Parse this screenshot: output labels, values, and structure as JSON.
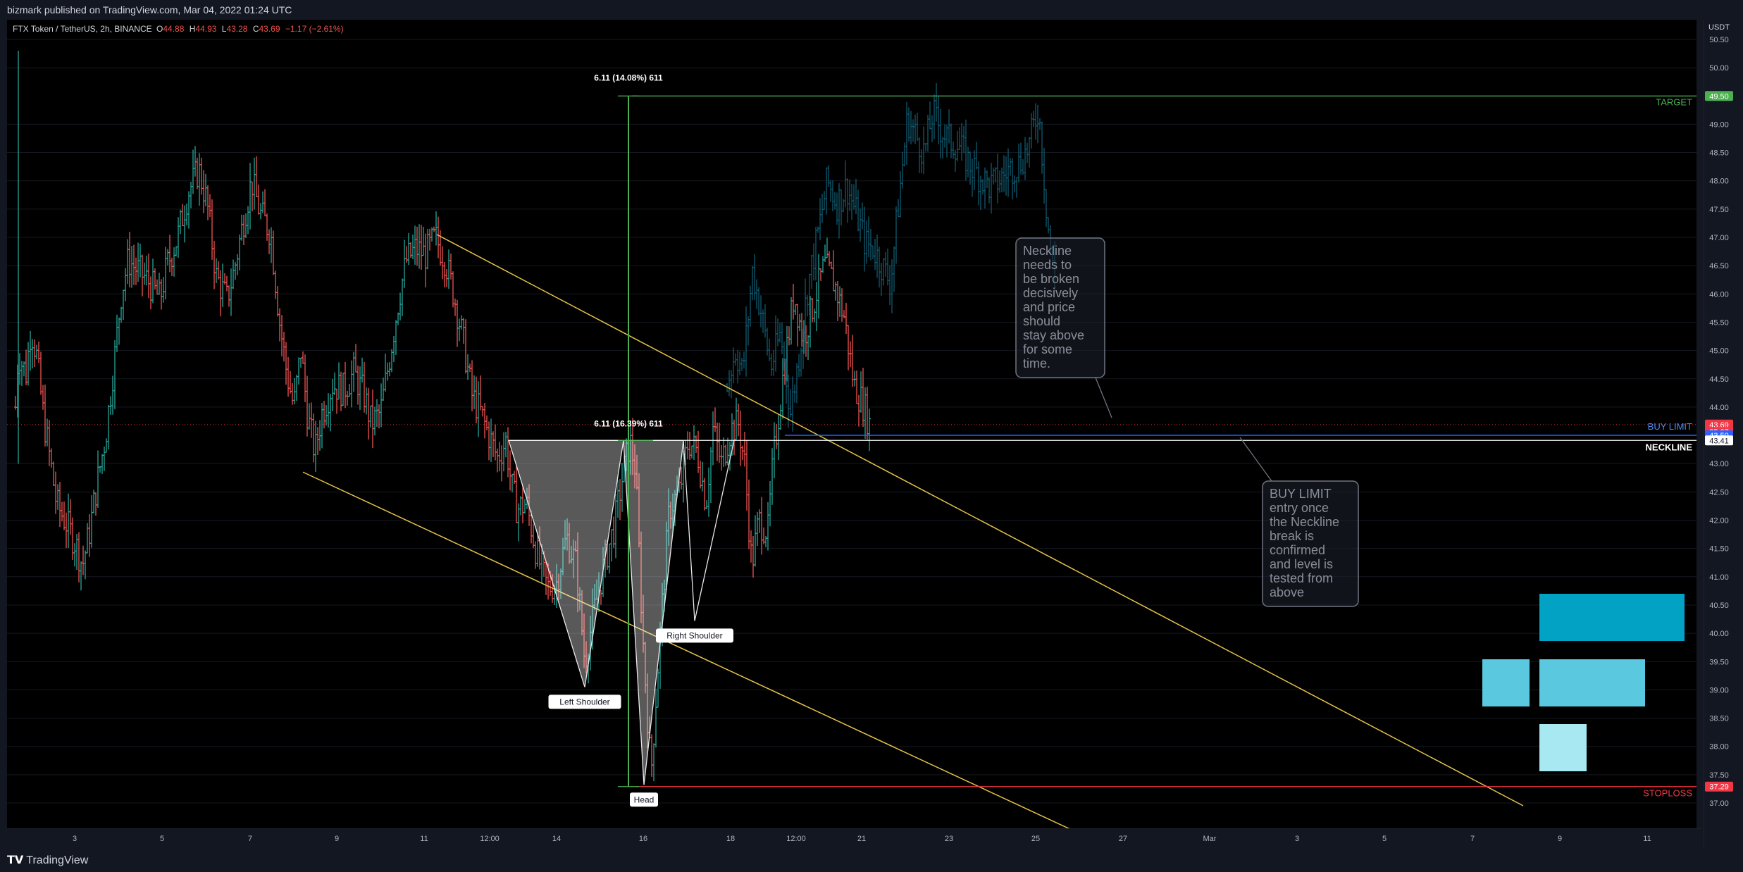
{
  "header": {
    "publisher": "bizmark published on TradingView.com, Mar 04, 2022 01:24 UTC"
  },
  "symbol": {
    "name": "FTX Token / TetherUS, 2h, BINANCE",
    "o_label": "O",
    "o": "44.88",
    "h_label": "H",
    "h": "44.93",
    "l_label": "L",
    "l": "43.28",
    "c_label": "C",
    "c": "43.69",
    "change": "−1.17 (−2.61%)"
  },
  "footer": {
    "brand": "TradingView"
  },
  "colors": {
    "up": "#26a69a",
    "down": "#ef5350",
    "projection": "#0f5a70",
    "channel": "#e5c24a",
    "target": "#4caf50",
    "stoploss": "#f23645",
    "buylimit": "#2962ff"
  },
  "chart_data": {
    "type": "bar",
    "currency": "USDT",
    "ylim": [
      36.7,
      50.8
    ],
    "y_ticks": [
      "37.00",
      "37.50",
      "38.00",
      "38.50",
      "39.00",
      "39.50",
      "40.00",
      "40.50",
      "41.00",
      "41.50",
      "42.00",
      "42.50",
      "43.00",
      "44.00",
      "44.50",
      "45.00",
      "45.50",
      "46.00",
      "46.50",
      "47.00",
      "47.50",
      "48.00",
      "48.50",
      "49.00",
      "50.00",
      "50.50"
    ],
    "x_ticks": [
      "3",
      "5",
      "7",
      "9",
      "11",
      "12:00",
      "14",
      "16",
      "18",
      "12:00",
      "21",
      "23",
      "25",
      "27",
      "Mar",
      "3",
      "5",
      "7",
      "9",
      "11"
    ],
    "price_tags": [
      {
        "label": "49.50",
        "value": 49.5,
        "bg": "#4caf50",
        "fg": "#ffffff"
      },
      {
        "label": "43.69",
        "value": 43.69,
        "bg": "#f23645",
        "fg": "#ffffff"
      },
      {
        "label": "35:37",
        "value": 43.56,
        "bg": "#f23645",
        "fg": "#ffffff"
      },
      {
        "label": "43.50",
        "value": 43.5,
        "bg": "#2962ff",
        "fg": "#ffffff"
      },
      {
        "label": "43.41",
        "value": 43.41,
        "bg": "#ffffff",
        "fg": "#131722"
      },
      {
        "label": "37.29",
        "value": 37.29,
        "bg": "#f23645",
        "fg": "#ffffff"
      }
    ],
    "levels": [
      {
        "name": "TARGET",
        "value": 49.5
      },
      {
        "name": "BUY LIMIT",
        "value": 43.5
      },
      {
        "name": "NECKLINE",
        "value": 43.41
      },
      {
        "name": "STOPLOSS",
        "value": 37.29
      }
    ],
    "measure_labels": {
      "upper": "6.11 (14.08%) 611",
      "lower": "6.11 (16.39%) 611"
    },
    "pattern_labels": {
      "left_shoulder": "Left Shoulder",
      "head": "Head",
      "right_shoulder": "Right Shoulder"
    },
    "notes": {
      "neckline": [
        "Neckline",
        "needs to",
        "be broken",
        "decisively",
        "and price",
        "should",
        "stay above",
        "for some",
        "time."
      ],
      "buy_limit": [
        "BUY LIMIT",
        "entry once",
        "the Neckline",
        "break is",
        "confirmed",
        "and level is",
        "tested from",
        "above"
      ]
    },
    "price_path": [
      [
        0,
        44.0
      ],
      [
        4,
        45.0
      ],
      [
        8,
        44.8
      ],
      [
        15,
        44.6
      ],
      [
        22,
        45.4
      ],
      [
        30,
        44.9
      ],
      [
        40,
        43.8
      ],
      [
        50,
        43.0
      ],
      [
        58,
        42.3
      ],
      [
        70,
        42.0
      ],
      [
        85,
        41.6
      ],
      [
        95,
        41.2
      ],
      [
        105,
        41.8
      ],
      [
        115,
        42.6
      ],
      [
        128,
        43.5
      ],
      [
        140,
        44.8
      ],
      [
        150,
        46.0
      ],
      [
        160,
        46.6
      ],
      [
        175,
        46.4
      ],
      [
        190,
        46.2
      ],
      [
        205,
        45.9
      ],
      [
        215,
        46.5
      ],
      [
        230,
        47.0
      ],
      [
        245,
        47.8
      ],
      [
        260,
        48.2
      ],
      [
        272,
        47.6
      ],
      [
        285,
        46.3
      ],
      [
        300,
        45.9
      ],
      [
        310,
        46.4
      ],
      [
        322,
        47.2
      ],
      [
        335,
        48.0
      ],
      [
        348,
        47.4
      ],
      [
        362,
        47.1
      ],
      [
        375,
        45.5
      ],
      [
        385,
        44.6
      ],
      [
        395,
        44.0
      ],
      [
        405,
        45.0
      ],
      [
        415,
        43.8
      ],
      [
        425,
        43.2
      ],
      [
        435,
        43.9
      ],
      [
        450,
        44.4
      ],
      [
        465,
        44.3
      ],
      [
        480,
        44.6
      ],
      [
        495,
        44.2
      ],
      [
        505,
        43.7
      ],
      [
        518,
        43.9
      ],
      [
        530,
        44.8
      ],
      [
        545,
        46.0
      ],
      [
        555,
        46.6
      ],
      [
        568,
        46.8
      ],
      [
        582,
        46.7
      ],
      [
        596,
        47.0
      ],
      [
        610,
        46.6
      ],
      [
        622,
        46.0
      ],
      [
        635,
        45.2
      ],
      [
        648,
        44.2
      ],
      [
        660,
        43.9
      ],
      [
        672,
        43.5
      ],
      [
        684,
        43.1
      ],
      [
        696,
        43.4
      ],
      [
        704,
        42.6
      ],
      [
        712,
        42.2
      ],
      [
        725,
        42.3
      ],
      [
        740,
        41.4
      ],
      [
        755,
        40.8
      ],
      [
        768,
        40.9
      ],
      [
        782,
        41.7
      ],
      [
        796,
        41.2
      ],
      [
        808,
        39.5
      ],
      [
        820,
        40.3
      ],
      [
        835,
        41.2
      ],
      [
        850,
        41.9
      ],
      [
        862,
        42.8
      ],
      [
        872,
        43.4
      ],
      [
        880,
        42.9
      ],
      [
        890,
        40.0
      ],
      [
        902,
        37.5
      ],
      [
        915,
        40.0
      ],
      [
        928,
        42.2
      ],
      [
        942,
        42.5
      ],
      [
        955,
        43.4
      ],
      [
        968,
        43.2
      ],
      [
        980,
        42.3
      ],
      [
        990,
        43.6
      ],
      [
        1002,
        43.0
      ],
      [
        1015,
        43.6
      ],
      [
        1026,
        43.7
      ],
      [
        1035,
        43.0
      ],
      [
        1045,
        41.2
      ],
      [
        1055,
        42.0
      ],
      [
        1068,
        41.8
      ],
      [
        1075,
        43.0
      ],
      [
        1090,
        44.6
      ],
      [
        1105,
        46.0
      ],
      [
        1118,
        45.2
      ],
      [
        1132,
        45.8
      ],
      [
        1148,
        46.5
      ],
      [
        1162,
        46.2
      ],
      [
        1176,
        45.6
      ],
      [
        1190,
        44.4
      ],
      [
        1205,
        44.0
      ],
      [
        1212,
        43.7
      ]
    ],
    "projection_path": [
      [
        1010,
        44.4
      ],
      [
        1022,
        45.0
      ],
      [
        1032,
        44.6
      ],
      [
        1046,
        46.4
      ],
      [
        1058,
        45.7
      ],
      [
        1072,
        44.7
      ],
      [
        1086,
        45.3
      ],
      [
        1100,
        43.9
      ],
      [
        1112,
        44.9
      ],
      [
        1124,
        46.1
      ],
      [
        1138,
        47.0
      ],
      [
        1152,
        48.0
      ],
      [
        1166,
        47.6
      ],
      [
        1180,
        47.9
      ],
      [
        1194,
        47.4
      ],
      [
        1206,
        46.9
      ],
      [
        1218,
        46.8
      ],
      [
        1230,
        46.5
      ],
      [
        1242,
        46.2
      ],
      [
        1254,
        47.7
      ],
      [
        1266,
        49.1
      ],
      [
        1278,
        48.8
      ],
      [
        1290,
        48.5
      ],
      [
        1302,
        49.2
      ],
      [
        1314,
        48.9
      ],
      [
        1326,
        48.7
      ],
      [
        1340,
        48.6
      ],
      [
        1354,
        48.3
      ],
      [
        1368,
        48.1
      ],
      [
        1382,
        47.9
      ],
      [
        1396,
        48.0
      ],
      [
        1410,
        48.2
      ],
      [
        1424,
        48.3
      ],
      [
        1438,
        48.6
      ],
      [
        1452,
        49.3
      ],
      [
        1464,
        47.4
      ],
      [
        1476,
        46.0
      ]
    ]
  }
}
